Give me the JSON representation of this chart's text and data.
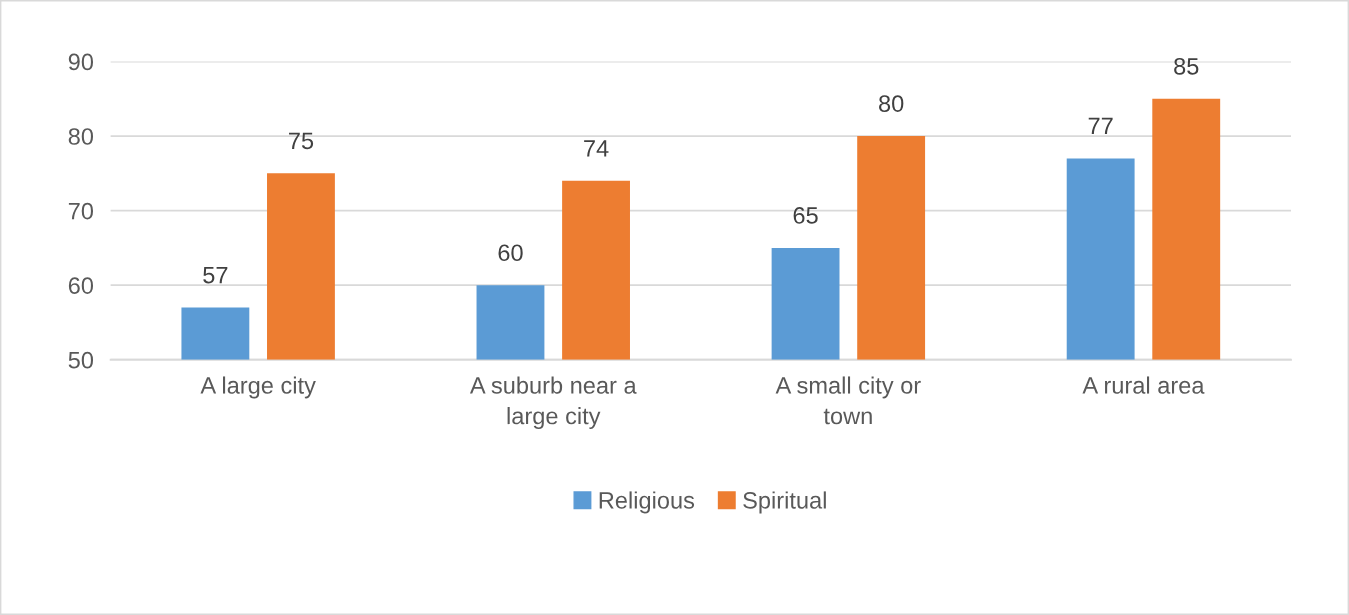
{
  "chart_data": {
    "type": "bar",
    "categories": [
      "A large city",
      "A suburb near a large city",
      "A small city or town",
      "A rural area"
    ],
    "series": [
      {
        "name": "Religious",
        "color": "#5b9bd5",
        "values": [
          57,
          60,
          65,
          77
        ]
      },
      {
        "name": "Spiritual",
        "color": "#ed7d31",
        "values": [
          75,
          74,
          80,
          85
        ]
      }
    ],
    "ylim": [
      50,
      90
    ],
    "yticks": [
      50,
      60,
      70,
      80,
      90
    ],
    "grid": "y",
    "legend": "bottom",
    "data_labels": true
  }
}
